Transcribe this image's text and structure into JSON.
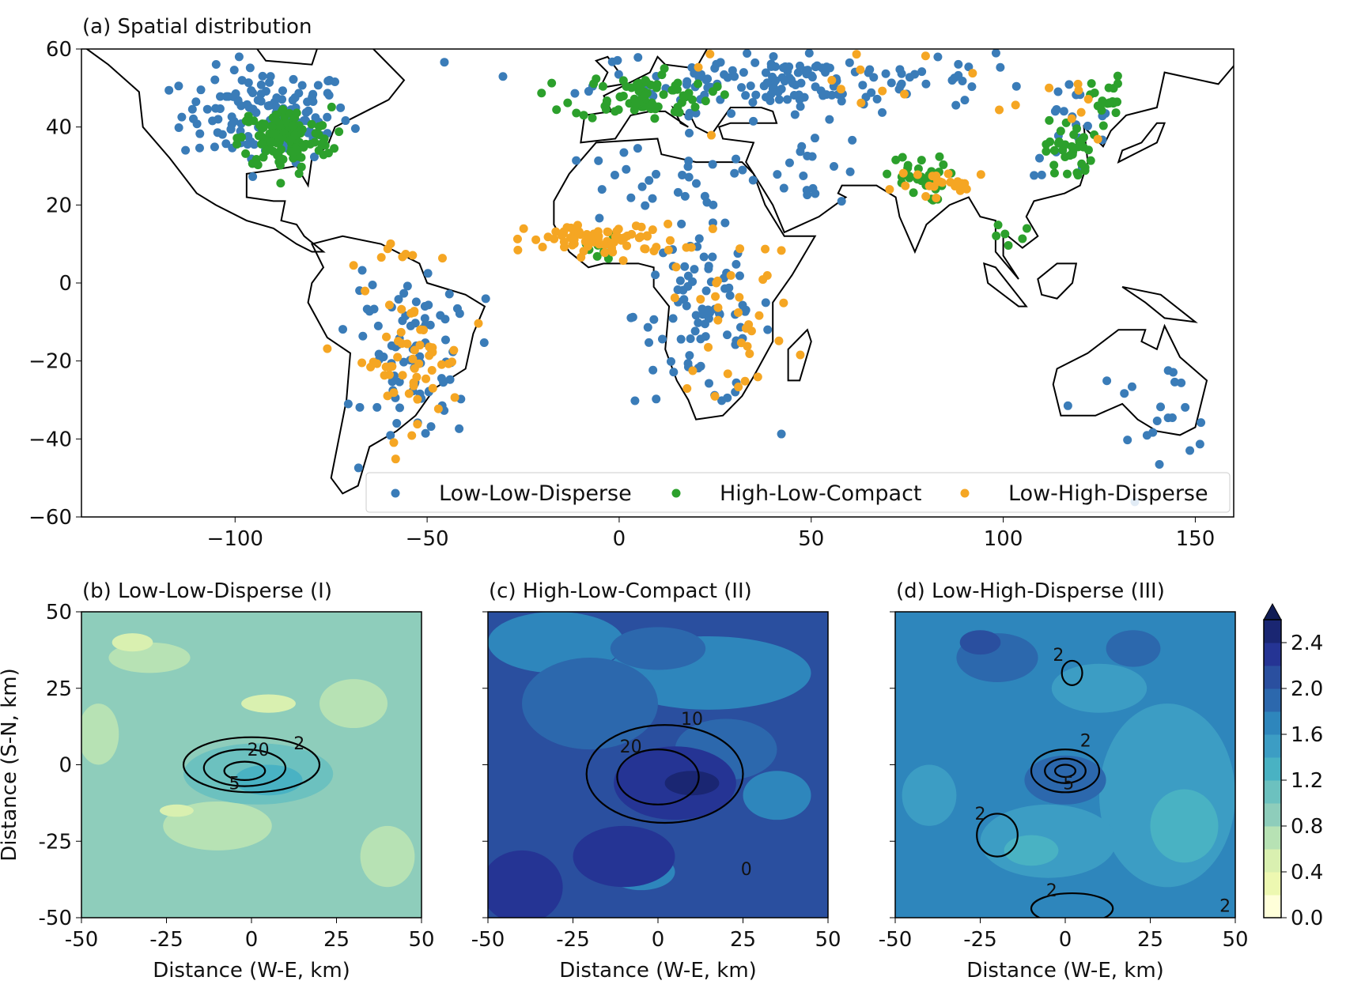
{
  "chart_data": [
    {
      "type": "scatter",
      "title": "(a) Spatial distribution",
      "xlim": [
        -140,
        160
      ],
      "ylim": [
        -60,
        60
      ],
      "xticks": [
        -100,
        -50,
        0,
        50,
        100,
        150
      ],
      "xtick_labels": [
        "−100",
        "−50",
        "0",
        "50",
        "100",
        "150"
      ],
      "yticks": [
        60,
        40,
        20,
        0,
        -20,
        -40,
        -60
      ],
      "ytick_labels": [
        "60",
        "40",
        "20",
        "0",
        "−20",
        "−40",
        "−60"
      ],
      "legend_position": "bottom-right",
      "series": [
        {
          "name": "Low-Low-Disperse",
          "color": "#3a7cb8",
          "clusters": [
            [
              -92,
              43,
              11,
              6,
              130
            ],
            [
              45,
              52,
              26,
              4,
              160
            ],
            [
              22,
              -8,
              9,
              12,
              90
            ],
            [
              8,
              24,
              14,
              5,
              25
            ],
            [
              -52,
              -22,
              7,
              10,
              70
            ],
            [
              50,
              30,
              8,
              5,
              20
            ],
            [
              118,
              40,
              6,
              6,
              18
            ],
            [
              140,
              -32,
              10,
              6,
              22
            ],
            [
              -60,
              -8,
              8,
              5,
              15
            ]
          ]
        },
        {
          "name": "High-Low-Compact",
          "color": "#2ca02c",
          "clusters": [
            [
              -87,
              37,
              6,
              4,
              130
            ],
            [
              6,
              48,
              9,
              3,
              80
            ],
            [
              77,
              27,
              4,
              3,
              30
            ],
            [
              117,
              34,
              3,
              4,
              35
            ],
            [
              127,
              47,
              2,
              3,
              20
            ],
            [
              -5,
              8,
              4,
              2,
              10
            ],
            [
              102,
              12,
              3,
              3,
              6
            ]
          ]
        },
        {
          "name": "Low-High-Disperse",
          "color": "#f5a623",
          "clusters": [
            [
              -4,
              11,
              10,
              2,
              80
            ],
            [
              30,
              -8,
              8,
              10,
              35
            ],
            [
              -55,
              -20,
              7,
              8,
              55
            ],
            [
              86,
              25,
              7,
              2,
              22
            ],
            [
              65,
              52,
              30,
              5,
              16
            ],
            [
              -55,
              8,
              5,
              2,
              8
            ],
            [
              122,
              45,
              5,
              4,
              8
            ]
          ]
        }
      ]
    },
    {
      "type": "heatmap",
      "title": "(b) Low-Low-Disperse (I)",
      "xlabel": "Distance (W-E, km)",
      "ylabel": "Distance (S-N, km)",
      "xlim": [
        -50,
        50
      ],
      "ylim": [
        -50,
        50
      ],
      "contour_labels": [
        "20",
        "5",
        "2"
      ]
    },
    {
      "type": "heatmap",
      "title": "(c) High-Low-Compact (II)",
      "xlabel": "Distance (W-E, km)",
      "xlim": [
        -50,
        50
      ],
      "ylim": [
        -50,
        50
      ],
      "contour_labels": [
        "10",
        "20",
        "0"
      ]
    },
    {
      "type": "heatmap",
      "title": "(d) Low-High-Disperse (III)",
      "xlabel": "Distance (W-E, km)",
      "xlim": [
        -50,
        50
      ],
      "ylim": [
        -50,
        50
      ],
      "contour_labels": [
        "2",
        "2",
        "5",
        "2",
        "2",
        "2"
      ]
    }
  ],
  "panel_ticks": {
    "x": [
      "-50",
      "-25",
      "0",
      "25",
      "50"
    ],
    "y": [
      "50",
      "25",
      "0",
      "-25",
      "-50"
    ]
  },
  "colorbar": {
    "ticks": [
      "2.4",
      "2.0",
      "1.6",
      "1.2",
      "0.8",
      "0.4",
      "0.0"
    ],
    "range": [
      0,
      2.6
    ],
    "colors": [
      "#ffffd9",
      "#edf8b1",
      "#d9f0b0",
      "#b7e2b4",
      "#8ecdbb",
      "#6cc1bf",
      "#49b2c3",
      "#3c9dc4",
      "#2e86bc",
      "#2c68ad",
      "#2a4f9f",
      "#253494",
      "#1a2672"
    ]
  }
}
